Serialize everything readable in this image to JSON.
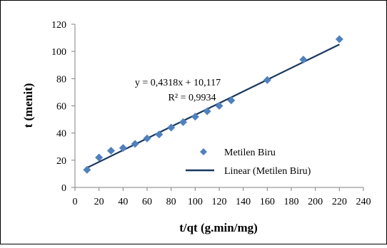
{
  "chart_data": {
    "type": "scatter",
    "title": "",
    "xlabel": "t/qt (g.min/mg)",
    "ylabel": "t (menit)",
    "xlim": [
      0,
      240
    ],
    "ylim": [
      0,
      120
    ],
    "x_ticks": [
      "0",
      "20",
      "40",
      "60",
      "80",
      "100",
      "120",
      "140",
      "160",
      "180",
      "200",
      "220",
      "240"
    ],
    "y_ticks": [
      "0",
      "20",
      "40",
      "60",
      "80",
      "100",
      "120"
    ],
    "grid": false,
    "legend_position": "bottom-right",
    "series": [
      {
        "name": "Metilen Biru",
        "marker": "diamond",
        "color": "#4F81BD",
        "points": [
          {
            "x": 10,
            "y": 13
          },
          {
            "x": 20,
            "y": 22
          },
          {
            "x": 30,
            "y": 27
          },
          {
            "x": 40,
            "y": 29
          },
          {
            "x": 50,
            "y": 32
          },
          {
            "x": 60,
            "y": 36
          },
          {
            "x": 70,
            "y": 39
          },
          {
            "x": 80,
            "y": 44
          },
          {
            "x": 90,
            "y": 48
          },
          {
            "x": 100,
            "y": 52
          },
          {
            "x": 110,
            "y": 56
          },
          {
            "x": 120,
            "y": 60
          },
          {
            "x": 130,
            "y": 64
          },
          {
            "x": 160,
            "y": 79
          },
          {
            "x": 190,
            "y": 94
          },
          {
            "x": 220,
            "y": 109
          }
        ]
      },
      {
        "name": "Linear (Metilen Biru)",
        "type": "trendline",
        "color": "#17375E",
        "slope": 0.4318,
        "intercept": 10.117,
        "x_range": [
          10,
          220
        ]
      }
    ],
    "annotations": {
      "equation": "y = 0,4318x + 10,117",
      "r_squared": "R² = 0,9934"
    }
  }
}
